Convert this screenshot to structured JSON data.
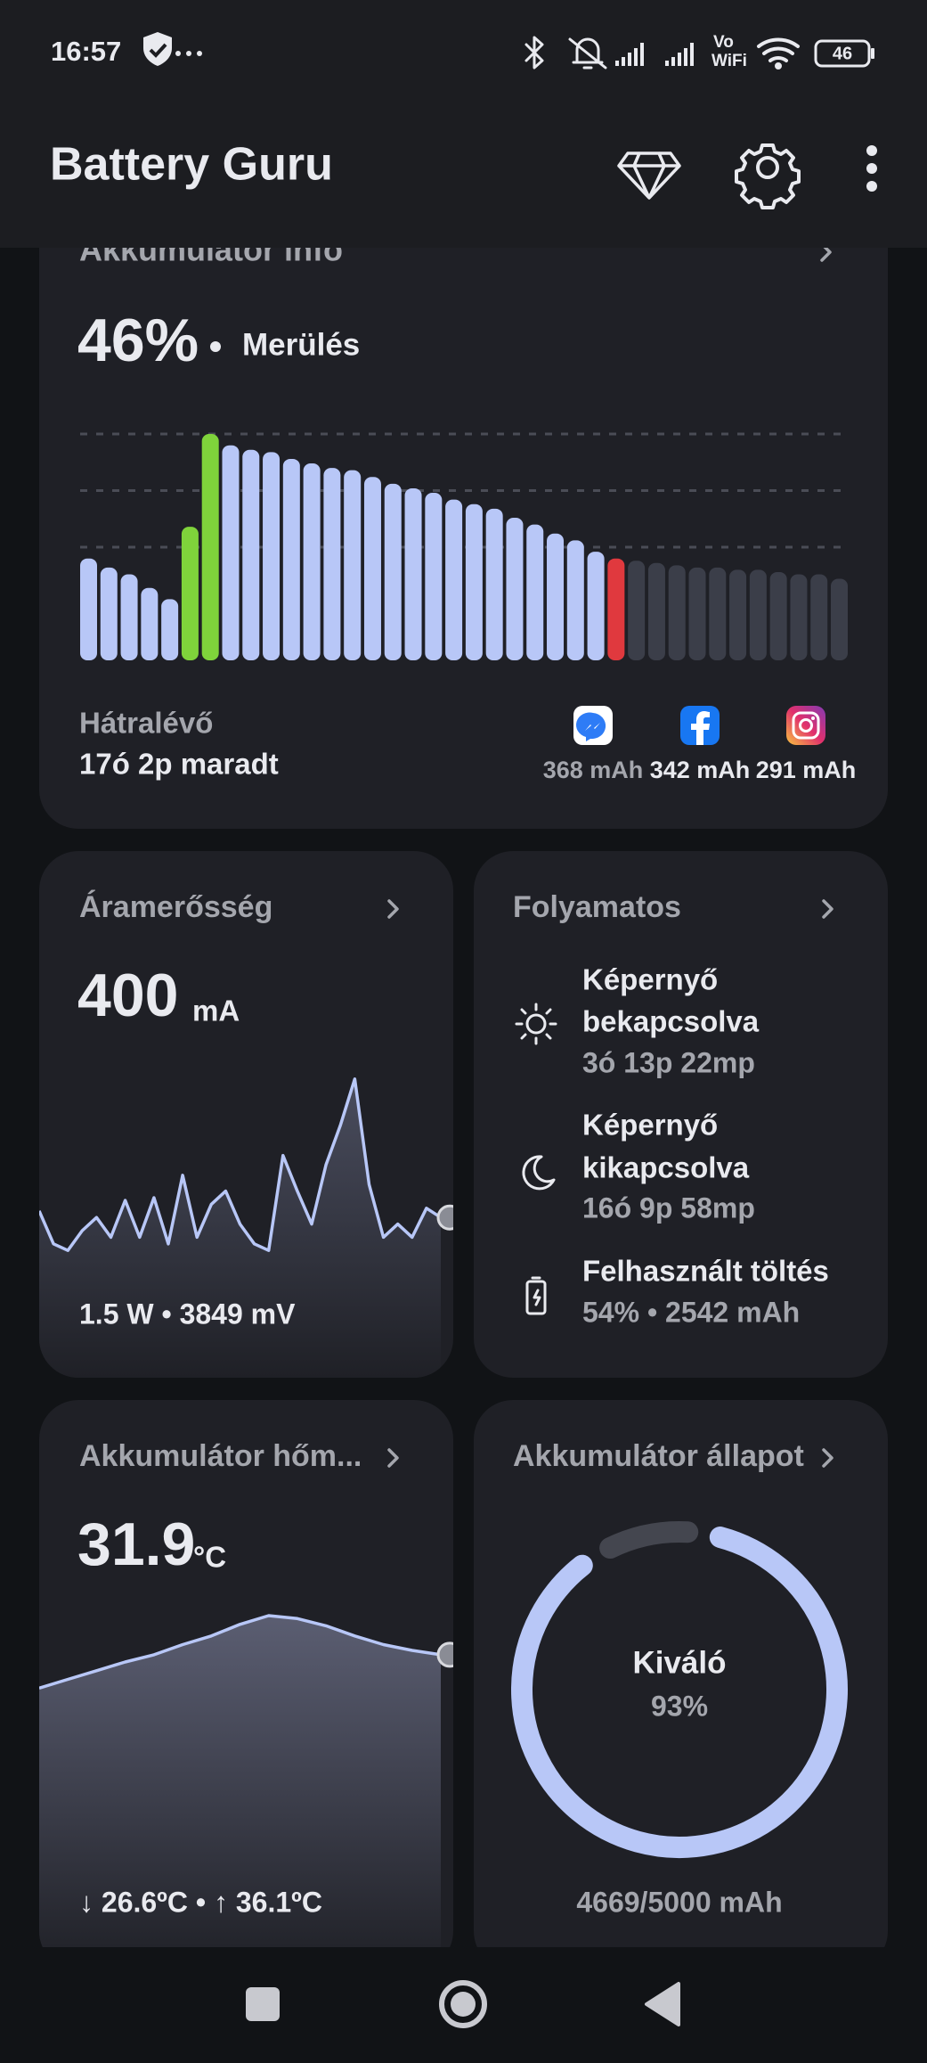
{
  "status_bar": {
    "time": "16:57",
    "volte": "Vo",
    "wifi_label": "WiFi",
    "battery": "46"
  },
  "app_bar": {
    "title": "Battery Guru"
  },
  "battery_info": {
    "title": "Akkumulátor info",
    "level": "46%",
    "state": "Merülés",
    "chart": {
      "type": "bar",
      "values": [
        45,
        41,
        38,
        32,
        27,
        59,
        100,
        95,
        93,
        92,
        89,
        87,
        85,
        84,
        81,
        78,
        76,
        74,
        71,
        69,
        67,
        63,
        60,
        56,
        53,
        48,
        45,
        44,
        43,
        42,
        41,
        41,
        40,
        40,
        39,
        38,
        38,
        36
      ],
      "colors": [
        "#b8c7f7",
        "#b8c7f7",
        "#b8c7f7",
        "#b8c7f7",
        "#b8c7f7",
        "#7fd33b",
        "#7fd33b",
        "#b8c7f7",
        "#b8c7f7",
        "#b8c7f7",
        "#b8c7f7",
        "#b8c7f7",
        "#b8c7f7",
        "#b8c7f7",
        "#b8c7f7",
        "#b8c7f7",
        "#b8c7f7",
        "#b8c7f7",
        "#b8c7f7",
        "#b8c7f7",
        "#b8c7f7",
        "#b8c7f7",
        "#b8c7f7",
        "#b8c7f7",
        "#b8c7f7",
        "#b8c7f7",
        "#e0393e",
        "#3b3e49",
        "#3b3e49",
        "#3b3e49",
        "#3b3e49",
        "#3b3e49",
        "#3b3e49",
        "#3b3e49",
        "#3b3e49",
        "#3b3e49",
        "#3b3e49",
        "#3b3e49"
      ],
      "ylim": [
        0,
        100
      ],
      "grid_lines": [
        50,
        75,
        100
      ]
    },
    "remaining_label": "Hátralévő",
    "remaining_value": "17ó 2p maradt",
    "apps": [
      {
        "usage": "368 mAh"
      },
      {
        "usage": "342 mAh"
      },
      {
        "usage": "291 mAh"
      }
    ]
  },
  "current": {
    "title": "Áramerősség",
    "value": "400",
    "unit": "mA",
    "chart": {
      "type": "line",
      "values": [
        40,
        15,
        10,
        25,
        35,
        20,
        48,
        20,
        50,
        15,
        67,
        20,
        45,
        55,
        30,
        15,
        10,
        82,
        55,
        30,
        75,
        105,
        140,
        60,
        20,
        30,
        20,
        42,
        35
      ],
      "ylim": [
        0,
        150
      ]
    },
    "footer": "1.5 W • 3849 mV"
  },
  "processes": {
    "title": "Folyamatos",
    "items": [
      {
        "label_lines": [
          "Képernyő",
          "bekapcsolva"
        ],
        "value": "3ó 13p 22mp"
      },
      {
        "label_lines": [
          "Képernyő",
          "kikapcsolva"
        ],
        "value": "16ó 9p 58mp"
      },
      {
        "label_lines": [
          "Felhasznált töltés"
        ],
        "value": "54% • 2542 mAh"
      }
    ]
  },
  "temperature": {
    "title": "Akkumulátor hőm...",
    "value": "31.9",
    "unit": "°C",
    "chart": {
      "type": "line",
      "values": [
        22,
        28,
        34,
        40,
        45,
        52,
        58,
        66,
        72,
        70,
        65,
        58,
        52,
        48,
        45
      ],
      "ylim": [
        0,
        80
      ]
    },
    "footer": "↓ 26.6ºC • ↑ 36.1ºC"
  },
  "health": {
    "title": "Akkumulátor állapot",
    "status": "Kiváló",
    "percent": {
      "value": 93,
      "label": "93%"
    },
    "capacity": "4669/5000 mAh"
  }
}
